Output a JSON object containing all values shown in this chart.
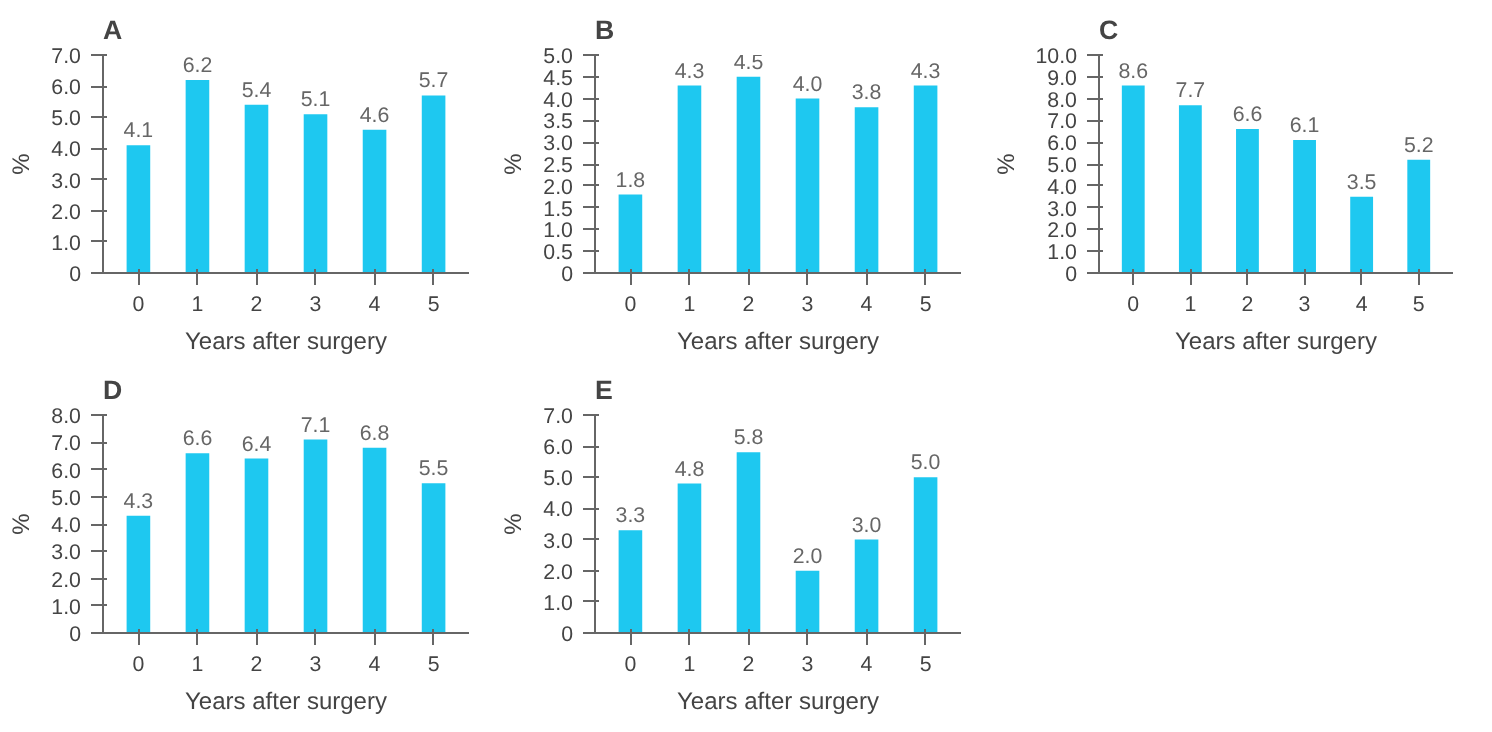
{
  "chart_data": [
    {
      "type": "bar",
      "title": "A",
      "categories": [
        "0",
        "1",
        "2",
        "3",
        "4",
        "5"
      ],
      "values": [
        4.1,
        6.2,
        5.4,
        5.1,
        4.6,
        5.7
      ],
      "color": "#1ec8f0",
      "xlabel": "Years after surgery",
      "ylabel": "%",
      "ylim": [
        0,
        7.0
      ],
      "yticks": [
        0,
        {
          "value": 1,
          "label": "1.0"
        },
        {
          "value": 2,
          "label": "2.0"
        },
        {
          "value": 3,
          "label": "3.0"
        },
        {
          "value": 4,
          "label": "4.0"
        },
        {
          "value": 5,
          "label": "5.0"
        },
        {
          "value": 6,
          "label": "6.0"
        },
        {
          "value": 7,
          "label": "7.0"
        }
      ],
      "data_labels": true,
      "grid": false
    },
    {
      "type": "bar",
      "title": "B",
      "categories": [
        "0",
        "1",
        "2",
        "3",
        "4",
        "5"
      ],
      "values": [
        1.8,
        4.3,
        4.5,
        4.0,
        3.8,
        4.3
      ],
      "value_labels": [
        "1.8",
        "4.3",
        "4.5",
        "4.0",
        "3.8",
        "4.3"
      ],
      "color": "#1ec8f0",
      "xlabel": "Years after surgery",
      "ylabel": "%",
      "ylim": [
        0,
        5.0
      ],
      "yticks": [
        0,
        {
          "value": 0.5,
          "label": "0.5"
        },
        {
          "value": 1,
          "label": "1.0"
        },
        {
          "value": 1.5,
          "label": "1.5"
        },
        {
          "value": 2,
          "label": "2.0"
        },
        {
          "value": 2.5,
          "label": "2.5"
        },
        {
          "value": 3,
          "label": "3.0"
        },
        {
          "value": 3.5,
          "label": "3.5"
        },
        {
          "value": 4,
          "label": "4.0"
        },
        {
          "value": 4.5,
          "label": "4.5"
        },
        {
          "value": 5,
          "label": "5.0"
        }
      ],
      "grid": false
    },
    {
      "type": "bar",
      "title": "C",
      "categories": [
        "0",
        "1",
        "2",
        "3",
        "4",
        "5"
      ],
      "values": [
        8.6,
        7.7,
        6.6,
        6.1,
        3.5,
        5.2
      ],
      "color": "#1ec8f0",
      "xlabel": "Years after surgery",
      "ylabel": "%",
      "ylim": [
        0,
        10.0
      ],
      "yticks": [
        0,
        {
          "value": 1,
          "label": "1.0"
        },
        {
          "value": 2,
          "label": "2.0"
        },
        {
          "value": 3,
          "label": "3.0"
        },
        {
          "value": 4,
          "label": "4.0"
        },
        {
          "value": 5,
          "label": "5.0"
        },
        {
          "value": 6,
          "label": "6.0"
        },
        {
          "value": 7,
          "label": "7.0"
        },
        {
          "value": 8,
          "label": "8.0"
        },
        {
          "value": 9,
          "label": "9.0"
        },
        {
          "value": 10,
          "label": "10.0"
        }
      ],
      "data_labels": true,
      "grid": false
    },
    {
      "type": "bar",
      "title": "D",
      "categories": [
        "0",
        "1",
        "2",
        "3",
        "4",
        "5"
      ],
      "values": [
        4.3,
        6.6,
        6.4,
        7.1,
        6.8,
        5.5
      ],
      "color": "#1ec8f0",
      "xlabel": "Years after surgery",
      "ylabel": "%",
      "ylim": [
        0,
        8.0
      ],
      "yticks": [
        0,
        {
          "value": 1,
          "label": "1.0"
        },
        {
          "value": 2,
          "label": "2.0"
        },
        {
          "value": 3,
          "label": "3.0"
        },
        {
          "value": 4,
          "label": "4.0"
        },
        {
          "value": 5,
          "label": "5.0"
        },
        {
          "value": 6,
          "label": "6.0"
        },
        {
          "value": 7,
          "label": "7.0"
        },
        {
          "value": 8,
          "label": "8.0"
        }
      ],
      "data_labels": true,
      "grid": false
    },
    {
      "type": "bar",
      "title": "E",
      "categories": [
        "0",
        "1",
        "2",
        "3",
        "4",
        "5"
      ],
      "values": [
        3.3,
        4.8,
        5.8,
        2.0,
        3.0,
        5.0
      ],
      "value_labels": [
        "3.3",
        "4.8",
        "5.8",
        "2.0",
        "3.0",
        "5.0"
      ],
      "color": "#1ec8f0",
      "xlabel": "Years after surgery",
      "ylabel": "%",
      "ylim": [
        0,
        7.0
      ],
      "yticks": [
        0,
        {
          "value": 1,
          "label": "1.0"
        },
        {
          "value": 2,
          "label": "2.0"
        },
        {
          "value": 3,
          "label": "3.0"
        },
        {
          "value": 4,
          "label": "4.0"
        },
        {
          "value": 5,
          "label": "5.0"
        },
        {
          "value": 6,
          "label": "6.0"
        },
        {
          "value": 7,
          "label": "7.0"
        }
      ],
      "grid": false
    }
  ]
}
